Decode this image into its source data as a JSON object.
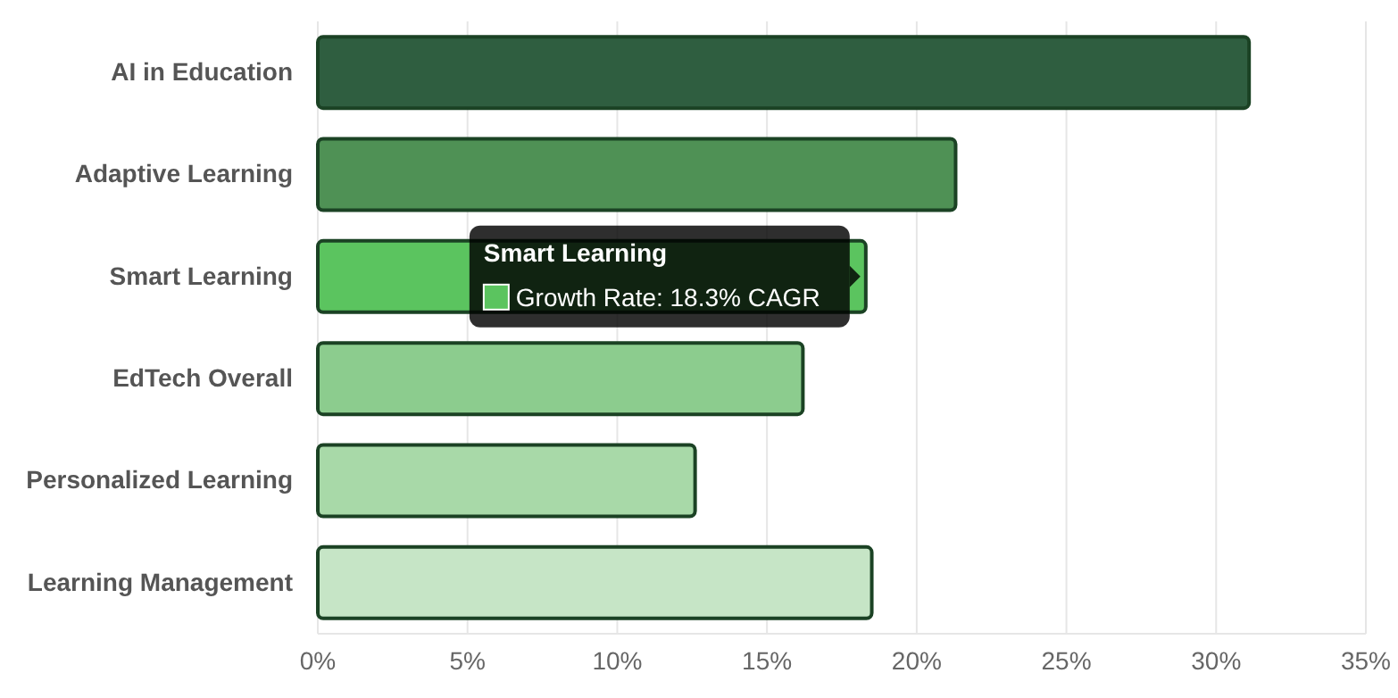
{
  "chart_data": {
    "type": "bar",
    "orientation": "horizontal",
    "categories": [
      "AI in Education",
      "Adaptive Learning",
      "Smart Learning",
      "EdTech Overall",
      "Personalized Learning",
      "Learning Management"
    ],
    "values": [
      31.1,
      21.3,
      18.3,
      16.2,
      12.6,
      18.5
    ],
    "colors": [
      "#2f5e40",
      "#4f9155",
      "#5bc45f",
      "#8ccc8e",
      "#a8d9a8",
      "#c6e5c6"
    ],
    "xlim": [
      0,
      35
    ],
    "xticks": [
      {
        "value": 0,
        "label": "0%"
      },
      {
        "value": 5,
        "label": "5%"
      },
      {
        "value": 10,
        "label": "10%"
      },
      {
        "value": 15,
        "label": "15%"
      },
      {
        "value": 20,
        "label": "20%"
      },
      {
        "value": 25,
        "label": "25%"
      },
      {
        "value": 30,
        "label": "30%"
      },
      {
        "value": 35,
        "label": "35%"
      }
    ],
    "grid": "x",
    "annotations": [
      "Smart Learning",
      "Growth Rate: 18.3% CAGR"
    ]
  }
}
